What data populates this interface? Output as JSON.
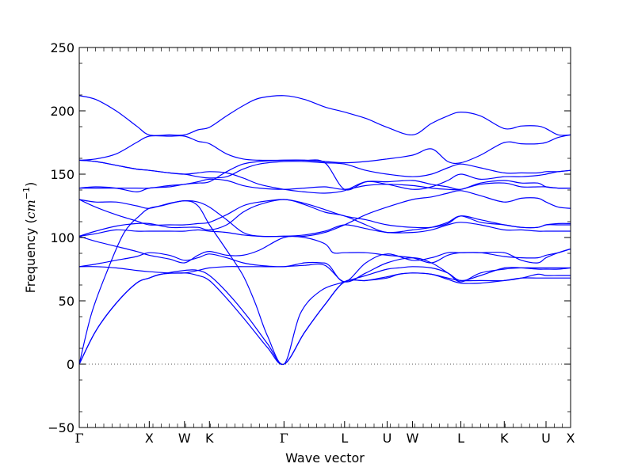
{
  "chart_data": {
    "type": "line",
    "xlabel": "Wave vector",
    "ylabel_text": "Frequency (",
    "ylabel_unit": "cm",
    "ylabel_exp": "−1",
    "ylabel_close": ")",
    "ylim": [
      -50,
      250
    ],
    "yticks": [
      -50,
      0,
      50,
      100,
      150,
      200,
      250
    ],
    "ytick_labels": [
      "−50",
      "0",
      "50",
      "100",
      "150",
      "200",
      "250"
    ],
    "xlim": [
      0,
      6.0
    ],
    "points": [
      {
        "label": "Γ",
        "x": 0.0,
        "greek": true
      },
      {
        "label": "X",
        "x": 0.855
      },
      {
        "label": "W",
        "x": 1.285
      },
      {
        "label": "K",
        "x": 1.59
      },
      {
        "label": "Γ",
        "x": 2.5,
        "greek": true
      },
      {
        "label": "L",
        "x": 3.24
      },
      {
        "label": "U",
        "x": 3.76
      },
      {
        "label": "W",
        "x": 4.07
      },
      {
        "label": "L",
        "x": 4.66
      },
      {
        "label": "K",
        "x": 5.19
      },
      {
        "label": "U",
        "x": 5.7
      },
      {
        "label": "X",
        "x": 6.0
      }
    ],
    "zero_line": {
      "y": 0,
      "style": "dotted"
    },
    "line_color": "#0000ff",
    "series": [
      {
        "x": [
          0,
          0.2,
          0.45,
          0.7,
          0.855,
          1.0,
          1.285,
          1.45,
          1.59,
          1.8,
          2.05,
          2.3,
          2.5,
          2.75,
          3.0,
          3.24,
          3.5,
          3.76,
          3.9,
          4.07,
          4.3,
          4.5,
          4.66,
          4.9,
          5.19,
          5.4,
          5.6,
          5.7,
          5.85,
          6.0
        ],
        "y": [
          0,
          26,
          48,
          64,
          68,
          71,
          72,
          70,
          66,
          52,
          33,
          13,
          0,
          25,
          47,
          65,
          66,
          68,
          71,
          72,
          71,
          67,
          64,
          64,
          66,
          68,
          68,
          68,
          68,
          68
        ]
      },
      {
        "x": [
          0,
          0.2,
          0.45,
          0.7,
          0.855,
          1.0,
          1.285,
          1.45,
          1.59,
          1.8,
          2.05,
          2.3,
          2.5,
          2.75,
          3.0,
          3.24,
          3.5,
          3.76,
          3.9,
          4.07,
          4.3,
          4.5,
          4.66,
          4.9,
          5.19,
          5.4,
          5.6,
          5.7,
          5.85,
          6.0
        ],
        "y": [
          0,
          26,
          48,
          64,
          68,
          71,
          74,
          74,
          70,
          57,
          38,
          16,
          0,
          25,
          47,
          65,
          66,
          69,
          71,
          72,
          71,
          68,
          66,
          66,
          66,
          68,
          71,
          70,
          70,
          70
        ]
      },
      {
        "x": [
          0,
          0.15,
          0.35,
          0.55,
          0.75,
          0.855,
          1.0,
          1.285,
          1.45,
          1.59,
          1.8,
          2.0,
          2.15,
          2.3,
          2.5,
          2.7,
          2.95,
          3.24,
          3.5,
          3.76,
          3.9,
          4.07,
          4.3,
          4.5,
          4.66,
          4.9,
          5.19,
          5.4,
          5.6,
          5.7,
          5.85,
          6.0
        ],
        "y": [
          0,
          40,
          75,
          104,
          118,
          123,
          125,
          129,
          125,
          110,
          90,
          70,
          48,
          22,
          0,
          40,
          58,
          65,
          70,
          75,
          76,
          77,
          76,
          72,
          66,
          70,
          76,
          76,
          75,
          75,
          75,
          76
        ]
      },
      {
        "x": [
          0,
          0.2,
          0.45,
          0.7,
          0.855,
          1.1,
          1.285,
          1.45,
          1.59,
          1.8,
          2.0,
          2.2,
          2.5,
          2.75,
          3.0,
          3.24,
          3.5,
          3.76,
          4.07,
          4.3,
          4.5,
          4.66,
          4.9,
          5.19,
          5.4,
          5.6,
          5.7,
          5.85,
          6.0
        ],
        "y": [
          77,
          77,
          76,
          74,
          73,
          72,
          72,
          74,
          76,
          77,
          77,
          77,
          77,
          78,
          78,
          65,
          72,
          80,
          84,
          80,
          72,
          65,
          72,
          75,
          76,
          76,
          76,
          76,
          76
        ]
      },
      {
        "x": [
          0,
          0.2,
          0.45,
          0.7,
          0.855,
          1.1,
          1.285,
          1.45,
          1.59,
          1.8,
          2.0,
          2.2,
          2.5,
          2.75,
          2.95,
          3.05,
          3.24,
          3.5,
          3.76,
          4.07,
          4.3,
          4.5,
          4.66,
          4.9,
          5.19,
          5.4,
          5.6,
          5.7,
          5.85,
          6.0
        ],
        "y": [
          77,
          79,
          82,
          85,
          88,
          86,
          82,
          84,
          87,
          84,
          80,
          78,
          77,
          80,
          80,
          78,
          65,
          80,
          87,
          82,
          84,
          88,
          88,
          88,
          85,
          84,
          84,
          86,
          88,
          91
        ]
      },
      {
        "x": [
          0,
          0.2,
          0.45,
          0.7,
          0.855,
          1.1,
          1.285,
          1.45,
          1.59,
          1.8,
          2.0,
          2.2,
          2.5,
          2.75,
          3.0,
          3.1,
          3.24,
          3.5,
          3.76,
          4.07,
          4.3,
          4.5,
          4.66,
          4.9,
          5.19,
          5.4,
          5.6,
          5.7,
          5.85,
          6.0
        ],
        "y": [
          101,
          97,
          93,
          89,
          86,
          83,
          80,
          86,
          89,
          86,
          86,
          90,
          100,
          100,
          95,
          88,
          88,
          88,
          86,
          84,
          80,
          86,
          88,
          88,
          88,
          82,
          80,
          84,
          88,
          91
        ]
      },
      {
        "x": [
          0,
          0.2,
          0.45,
          0.7,
          0.855,
          1.1,
          1.285,
          1.45,
          1.59,
          1.8,
          2.0,
          2.2,
          2.5,
          2.75,
          3.0,
          3.24,
          3.5,
          3.76,
          4.07,
          4.3,
          4.5,
          4.66,
          4.9,
          5.19,
          5.4,
          5.6,
          5.7,
          5.85,
          6.0
        ],
        "y": [
          101,
          103,
          106,
          105,
          105,
          105,
          105,
          106,
          105,
          104,
          102,
          101,
          101,
          102,
          105,
          110,
          107,
          104,
          104,
          106,
          110,
          112,
          110,
          106,
          106,
          105,
          105,
          105,
          105
        ]
      },
      {
        "x": [
          0,
          0.2,
          0.45,
          0.7,
          0.855,
          1.1,
          1.285,
          1.45,
          1.59,
          1.8,
          2.0,
          2.2,
          2.5,
          2.75,
          3.0,
          3.24,
          3.5,
          3.76,
          4.07,
          4.3,
          4.5,
          4.66,
          4.9,
          5.19,
          5.4,
          5.6,
          5.7,
          5.85,
          6.0
        ],
        "y": [
          101,
          105,
          109,
          111,
          111,
          108,
          108,
          108,
          106,
          110,
          120,
          126,
          130,
          126,
          120,
          117,
          110,
          104,
          106,
          108,
          112,
          117,
          112,
          110,
          108,
          108,
          110,
          110,
          110
        ]
      },
      {
        "x": [
          0,
          0.2,
          0.45,
          0.7,
          0.855,
          1.1,
          1.285,
          1.45,
          1.59,
          1.8,
          2.0,
          2.2,
          2.5,
          2.75,
          3.0,
          3.24,
          3.5,
          3.76,
          4.07,
          4.3,
          4.5,
          4.66,
          4.9,
          5.19,
          5.4,
          5.6,
          5.7,
          5.85,
          6.0
        ],
        "y": [
          130,
          124,
          118,
          113,
          110,
          110,
          110,
          111,
          112,
          118,
          125,
          128,
          130,
          127,
          122,
          117,
          114,
          110,
          108,
          108,
          111,
          117,
          114,
          110,
          108,
          108,
          110,
          111,
          111
        ]
      },
      {
        "x": [
          0,
          0.2,
          0.45,
          0.7,
          0.855,
          1.1,
          1.285,
          1.45,
          1.59,
          1.8,
          2.0,
          2.2,
          2.5,
          2.75,
          3.0,
          3.24,
          3.5,
          3.76,
          4.07,
          4.3,
          4.5,
          4.66,
          4.9,
          5.19,
          5.4,
          5.6,
          5.7,
          5.85,
          6.0
        ],
        "y": [
          130,
          128,
          128,
          125,
          123,
          127,
          129,
          128,
          124,
          114,
          104,
          101,
          101,
          101,
          104,
          110,
          118,
          124,
          130,
          132,
          135,
          137,
          133,
          128,
          131,
          131,
          128,
          124,
          123
        ]
      },
      {
        "x": [
          0,
          0.2,
          0.45,
          0.7,
          0.855,
          1.1,
          1.285,
          1.45,
          1.59,
          1.8,
          2.0,
          2.2,
          2.5,
          2.75,
          3.0,
          3.24,
          3.5,
          3.76,
          4.07,
          4.3,
          4.5,
          4.66,
          4.9,
          5.19,
          5.4,
          5.6,
          5.7,
          5.85,
          6.0
        ],
        "y": [
          139,
          140,
          139,
          136,
          139,
          140,
          142,
          143,
          144,
          152,
          158,
          160,
          161,
          161,
          159,
          138,
          144,
          144,
          145,
          142,
          140,
          138,
          143,
          145,
          143,
          143,
          140,
          139,
          139
        ]
      },
      {
        "x": [
          0,
          0.2,
          0.45,
          0.7,
          0.855,
          1.1,
          1.285,
          1.45,
          1.59,
          1.8,
          2.0,
          2.2,
          2.5,
          2.75,
          3.0,
          3.24,
          3.5,
          3.76,
          4.07,
          4.3,
          4.5,
          4.66,
          4.9,
          5.19,
          5.4,
          5.6,
          5.7,
          5.85,
          6.0
        ],
        "y": [
          139,
          139,
          139,
          139,
          139,
          141,
          142,
          144,
          146,
          145,
          141,
          139,
          138,
          139,
          140,
          138,
          141,
          142,
          141,
          139,
          138,
          138,
          142,
          143,
          140,
          140,
          140,
          139,
          139
        ]
      },
      {
        "x": [
          0,
          0.2,
          0.45,
          0.7,
          0.855,
          1.1,
          1.285,
          1.45,
          1.59,
          1.8,
          2.0,
          2.2,
          2.5,
          2.75,
          3.0,
          3.24,
          3.5,
          3.76,
          4.07,
          4.3,
          4.5,
          4.66,
          4.9,
          5.19,
          5.4,
          5.6,
          5.7,
          5.85,
          6.0
        ],
        "y": [
          161,
          160,
          157,
          154,
          153,
          151,
          150,
          151,
          152,
          151,
          147,
          142,
          138,
          136,
          135,
          137,
          144,
          142,
          138,
          140,
          145,
          150,
          146,
          148,
          148,
          149,
          150,
          152,
          153
        ]
      },
      {
        "x": [
          0,
          0.2,
          0.45,
          0.7,
          0.855,
          1.1,
          1.285,
          1.45,
          1.59,
          1.8,
          2.0,
          2.2,
          2.5,
          2.75,
          3.0,
          3.24,
          3.5,
          3.76,
          4.07,
          4.3,
          4.5,
          4.66,
          4.9,
          5.19,
          5.4,
          5.6,
          5.7,
          5.85,
          6.0
        ],
        "y": [
          161,
          160,
          157,
          154,
          153,
          151,
          150,
          148,
          147,
          148,
          154,
          158,
          160,
          160,
          159,
          158,
          153,
          150,
          148,
          150,
          155,
          158,
          155,
          151,
          151,
          151,
          152,
          152,
          153
        ]
      },
      {
        "x": [
          0,
          0.2,
          0.45,
          0.7,
          0.855,
          1.1,
          1.285,
          1.45,
          1.59,
          1.8,
          2.0,
          2.2,
          2.5,
          2.75,
          3.0,
          3.24,
          3.5,
          3.76,
          4.07,
          4.3,
          4.5,
          4.66,
          4.9,
          5.19,
          5.4,
          5.6,
          5.7,
          5.85,
          6.0
        ],
        "y": [
          161,
          162,
          166,
          175,
          180,
          180,
          180,
          176,
          174,
          166,
          162,
          161,
          161,
          161,
          160,
          159,
          160,
          162,
          165,
          170,
          160,
          159,
          165,
          175,
          174,
          174,
          175,
          179,
          181
        ]
      },
      {
        "x": [
          0,
          0.2,
          0.45,
          0.7,
          0.855,
          1.1,
          1.285,
          1.45,
          1.59,
          1.8,
          2.0,
          2.2,
          2.5,
          2.75,
          3.0,
          3.24,
          3.5,
          3.76,
          4.07,
          4.3,
          4.5,
          4.66,
          4.9,
          5.19,
          5.4,
          5.6,
          5.7,
          5.85,
          6.0
        ],
        "y": [
          212,
          209,
          200,
          188,
          181,
          181,
          181,
          185,
          187,
          196,
          204,
          210,
          212,
          209,
          203,
          199,
          194,
          187,
          181,
          190,
          196,
          199,
          196,
          186,
          188,
          188,
          186,
          181,
          181
        ]
      }
    ]
  }
}
